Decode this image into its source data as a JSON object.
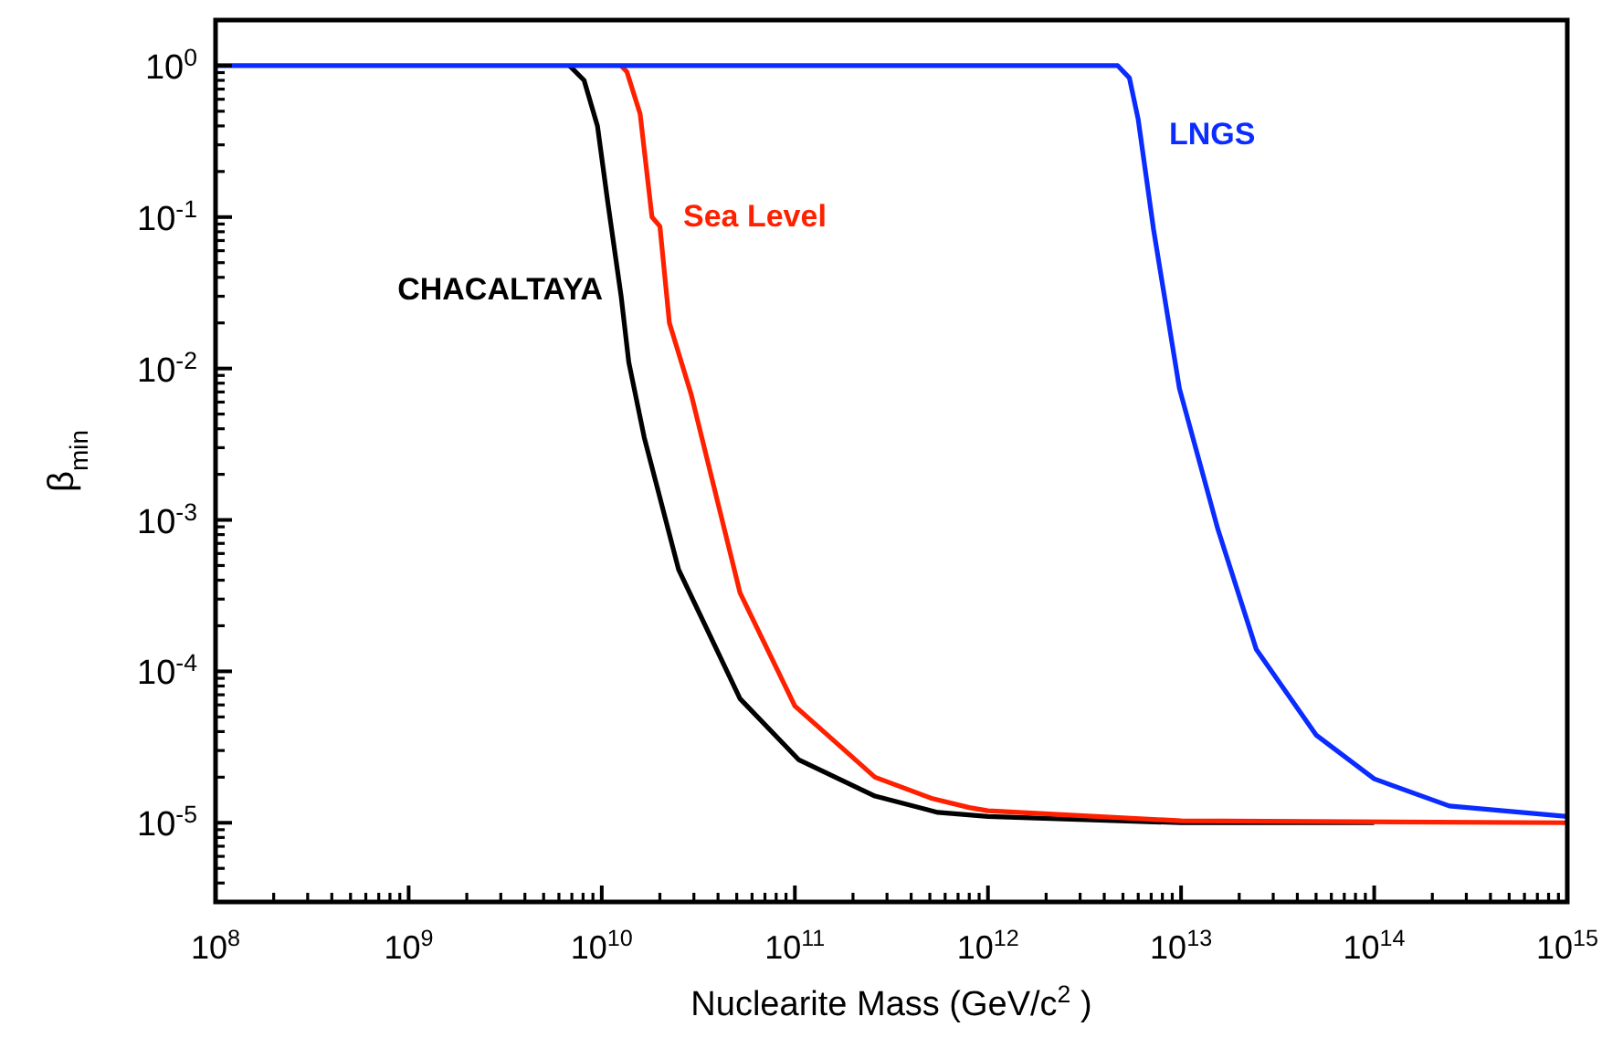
{
  "chart_data": {
    "type": "line",
    "xlabel": "Nuclearite Mass (GeV/c$^{2}$ )",
    "ylabel": "β$_{min}$",
    "log": "xy",
    "grid": false,
    "marker": "none",
    "line_style": "solid",
    "xlim": [
      100000000.0,
      1000000000000000.0
    ],
    "ylim": [
      3e-06,
      2
    ],
    "xticks": [
      {
        "value": 100000000.0,
        "label": "10$^{8}$"
      },
      {
        "value": 1000000000.0,
        "label": "10$^{9}$"
      },
      {
        "value": 10000000000.0,
        "label": "10$^{10}$"
      },
      {
        "value": 100000000000.0,
        "label": "10$^{11}$"
      },
      {
        "value": 1000000000000.0,
        "label": "10$^{12}$"
      },
      {
        "value": 10000000000000.0,
        "label": "10$^{13}$"
      },
      {
        "value": 100000000000000.0,
        "label": "10$^{14}$"
      },
      {
        "value": 1000000000000000.0,
        "label": "10$^{15}$"
      }
    ],
    "yticks": [
      {
        "value": 1e-05,
        "label": "10$^{-5}$"
      },
      {
        "value": 0.0001,
        "label": "10$^{-4}$"
      },
      {
        "value": 0.001,
        "label": "10$^{-3}$"
      },
      {
        "value": 0.01,
        "label": "10$^{-2}$"
      },
      {
        "value": 0.1,
        "label": "10$^{-1}$"
      },
      {
        "value": 1,
        "label": "10$^{0}$"
      }
    ],
    "series": [
      {
        "name": "CHACALTAYA",
        "color": "#000000",
        "x": [
          6800000000.0,
          8100000000.0,
          9500000000.0,
          10700000000.0,
          12600000000.0,
          13800000000.0,
          16600000000.0,
          25000000000.0,
          52000000000.0,
          105000000000.0,
          260000000000.0,
          550000000000.0,
          1000000000000.0,
          10000000000000.0,
          100000000000000.0
        ],
        "values": [
          1,
          0.8,
          0.4,
          0.13,
          0.03,
          0.011,
          0.0035,
          0.00047,
          6.6e-05,
          2.6e-05,
          1.5e-05,
          1.17e-05,
          1.1e-05,
          1e-05,
          1e-05
        ]
      },
      {
        "name": "Sea Level",
        "color": "#ff2000",
        "x": [
          12600000000.0,
          13500000000.0,
          15800000000.0,
          18200000000.0,
          20000000000.0,
          22400000000.0,
          29000000000.0,
          52000000000.0,
          100000000000.0,
          260000000000.0,
          510000000000.0,
          800000000000.0,
          1000000000000.0,
          10000000000000.0,
          1000000000000000.0
        ],
        "values": [
          1,
          0.91,
          0.48,
          0.1,
          0.087,
          0.02,
          0.0068,
          0.00033,
          5.9e-05,
          2e-05,
          1.45e-05,
          1.26e-05,
          1.2e-05,
          1.03e-05,
          1e-05
        ]
      },
      {
        "name": "LNGS",
        "color": "#0a2cff",
        "x": [
          100000000.0,
          4700000000000.0,
          5400000000000.0,
          6000000000000.0,
          7200000000000.0,
          9800000000000.0,
          15500000000000.0,
          24500000000000.0,
          50000000000000.0,
          100000000000000.0,
          245000000000000.0,
          1000000000000000.0
        ],
        "values": [
          1,
          1,
          0.83,
          0.44,
          0.083,
          0.0074,
          0.00087,
          0.00014,
          3.8e-05,
          1.95e-05,
          1.29e-05,
          1.1e-05
        ]
      }
    ]
  }
}
